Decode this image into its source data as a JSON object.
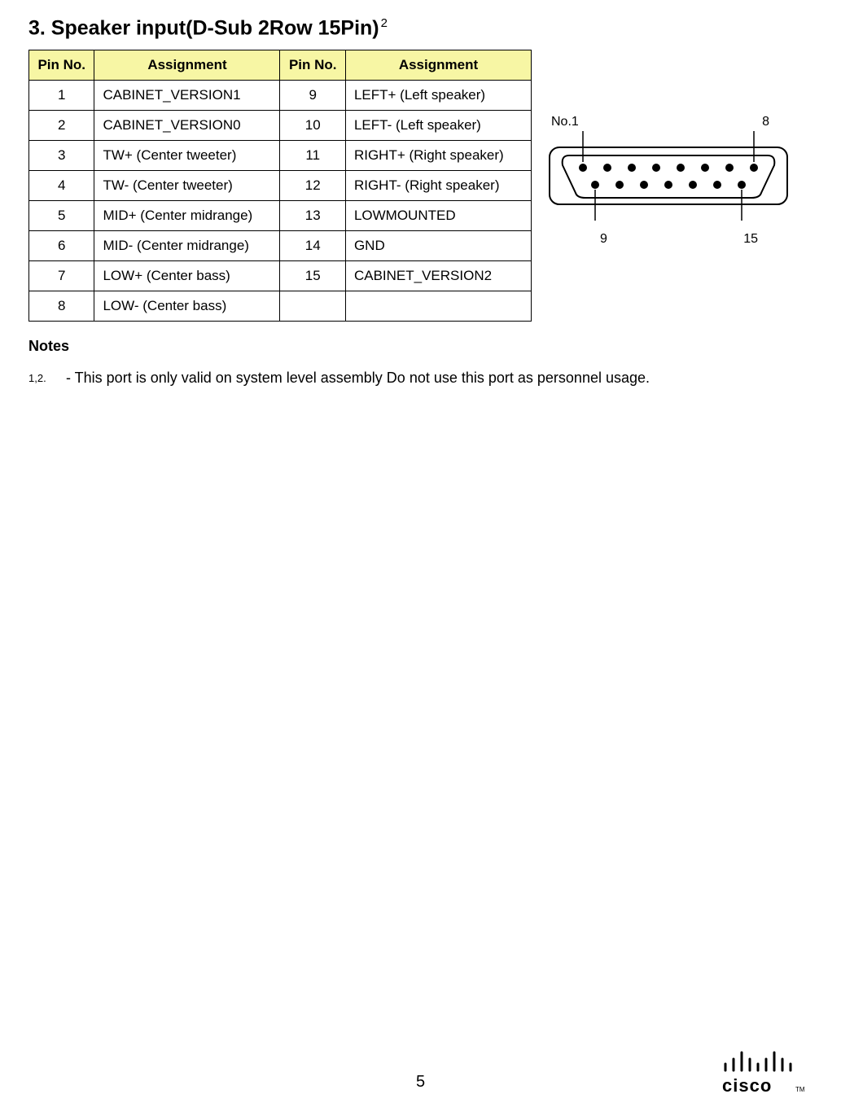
{
  "heading": {
    "text": "3. Speaker input(D-Sub 2Row 15Pin)",
    "sup": "2"
  },
  "table": {
    "header_bg": "#f7f6a4",
    "cols": {
      "pin": "Pin No.",
      "assign": "Assignment"
    },
    "rows": [
      {
        "p1": "1",
        "a1": "CABINET_VERSION1",
        "p2": "9",
        "a2": "LEFT+ (Left speaker)"
      },
      {
        "p1": "2",
        "a1": "CABINET_VERSION0",
        "p2": "10",
        "a2": "LEFT- (Left speaker)"
      },
      {
        "p1": "3",
        "a1": "TW+ (Center tweeter)",
        "p2": "11",
        "a2": "RIGHT+ (Right speaker)"
      },
      {
        "p1": "4",
        "a1": "TW- (Center tweeter)",
        "p2": "12",
        "a2": "RIGHT- (Right speaker)"
      },
      {
        "p1": "5",
        "a1": "MID+ (Center midrange)",
        "p2": "13",
        "a2": "LOWMOUNTED"
      },
      {
        "p1": "6",
        "a1": "MID- (Center midrange)",
        "p2": "14",
        "a2": "GND"
      },
      {
        "p1": "7",
        "a1": "LOW+ (Center bass)",
        "p2": "15",
        "a2": "CABINET_VERSION2"
      },
      {
        "p1": "8",
        "a1": "LOW- (Center bass)",
        "p2": "",
        "a2": ""
      }
    ]
  },
  "connector": {
    "top_left": "No.1",
    "top_right": "8",
    "bot_left": "9",
    "bot_right": "15"
  },
  "notes": {
    "title": "Notes",
    "items": [
      {
        "num": "1,2.",
        "body": "- This port is only valid on system level assembly Do not use this port as personnel usage."
      }
    ]
  },
  "page_number": "5",
  "logo_text": "cisco"
}
